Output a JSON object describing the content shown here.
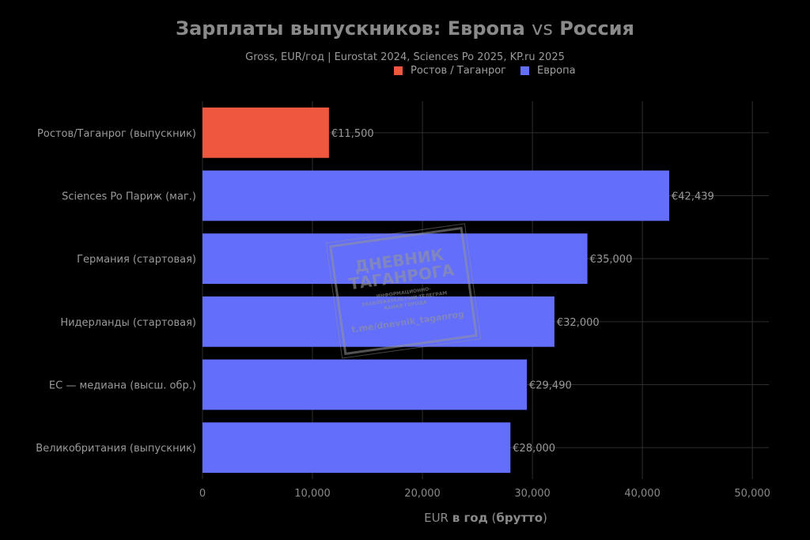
{
  "title_part1": "Зарплаты выпускников: Европа ",
  "title_vs": "vs",
  "title_part2": " Россия",
  "subtitle": "Gross, EUR/год | Eurostat 2024, Sciences Po 2025, KP.ru 2025",
  "legend": [
    {
      "label": "Ростов / Таганрог",
      "color": "#f0573f"
    },
    {
      "label": "Европа",
      "color": "#636efa"
    }
  ],
  "watermark": {
    "line1": "ДНЕВНИК",
    "line2": "ТАГАНРОГА",
    "tagline": "ИНФОРМАЦИОННО-РАЗВЛЕКАТЕЛЬНЫЙ ТЕЛЕГРАМ КАНАЛ ГОРОДА",
    "link": "t.me/dnevnik_taganrog"
  },
  "chart_data": {
    "type": "bar",
    "orientation": "horizontal",
    "title": "Зарплаты выпускников: Европа vs Россия",
    "subtitle": "Gross, EUR/год | Eurostat 2024, Sciences Po 2025, KP.ru 2025",
    "xlabel": "EUR в год (брутто)",
    "xlim": [
      0,
      51500
    ],
    "xticks": [
      0,
      10000,
      20000,
      30000,
      40000,
      50000
    ],
    "xtick_labels": [
      "0",
      "10,000",
      "20,000",
      "30,000",
      "40,000",
      "50,000"
    ],
    "grid": true,
    "legend_position": "top",
    "categories": [
      "Ростов/Таганрог (выпускник)",
      "Sciences Po Париж (маг.)",
      "Германия (стартовая)",
      "Нидерланды (стартовая)",
      "ЕС — медиана (высш. обр.)",
      "Великобритания (выпускник)"
    ],
    "values": [
      11500,
      42439,
      35000,
      32000,
      29490,
      28000
    ],
    "data_labels": [
      "€11,500",
      "€42,439",
      "€35,000",
      "€32,000",
      "€29,490",
      "€28,000"
    ],
    "groups": [
      "Ростов / Таганрог",
      "Европа",
      "Европа",
      "Европа",
      "Европа",
      "Европа"
    ],
    "colors": {
      "Ростов / Таганрог": "#f0573f",
      "Европа": "#636efa"
    }
  }
}
